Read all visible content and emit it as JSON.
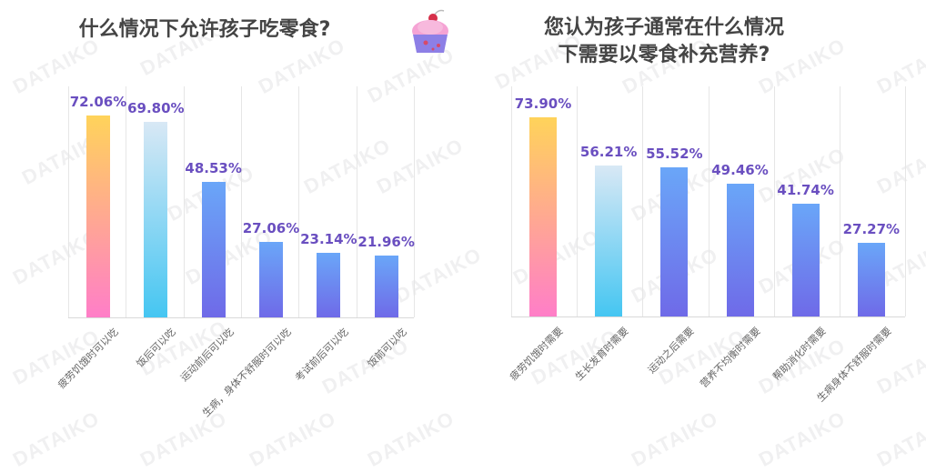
{
  "colors": {
    "value_label": "#6a4fc0",
    "title": "#444444",
    "bar1_top": "#ffd35a",
    "bar1_bottom": "#ff7ec8",
    "bar2_top": "#d8e8f5",
    "bar2_bottom": "#45c6f2",
    "bar_other_top": "#6aa6f8",
    "bar_other_bottom": "#6f6ae8",
    "grid": "#e6e6e6"
  },
  "watermark_text": "DATAIKO",
  "decoration": {
    "icon": "cupcake-icon"
  },
  "chart_data": [
    {
      "type": "bar",
      "title": "什么情况下允许孩子吃零食?",
      "xlabel": "",
      "ylabel": "",
      "ylim": [
        0,
        80
      ],
      "grid": "vertical separators only",
      "categories": [
        "疲劳饥饿时可以吃",
        "饭后可以吃",
        "运动前后可以吃",
        "生病，身体不舒服时可以吃",
        "考试前后可以吃",
        "饭前可以吃"
      ],
      "values": [
        72.06,
        69.8,
        48.53,
        27.06,
        23.14,
        21.96
      ],
      "value_labels": [
        "72.06%",
        "69.80%",
        "48.53%",
        "27.06%",
        "23.14%",
        "21.96%"
      ]
    },
    {
      "type": "bar",
      "title": "您认为孩子通常在什么情况下需要以零食补充营养?",
      "title_lines": [
        "您认为孩子通常在什么情况",
        "下需要以零食补充营养?"
      ],
      "xlabel": "",
      "ylabel": "",
      "ylim": [
        0,
        80
      ],
      "grid": "vertical separators only",
      "categories": [
        "疲劳饥饿时需要",
        "生长发育时需要",
        "运动之后需要",
        "营养不均衡时需要",
        "帮助消化时需要",
        "生病身体不舒服时需要"
      ],
      "values": [
        73.9,
        56.21,
        55.52,
        49.46,
        41.74,
        27.27
      ],
      "value_labels": [
        "73.90%",
        "56.21%",
        "55.52%",
        "49.46%",
        "41.74%",
        "27.27%"
      ]
    }
  ]
}
